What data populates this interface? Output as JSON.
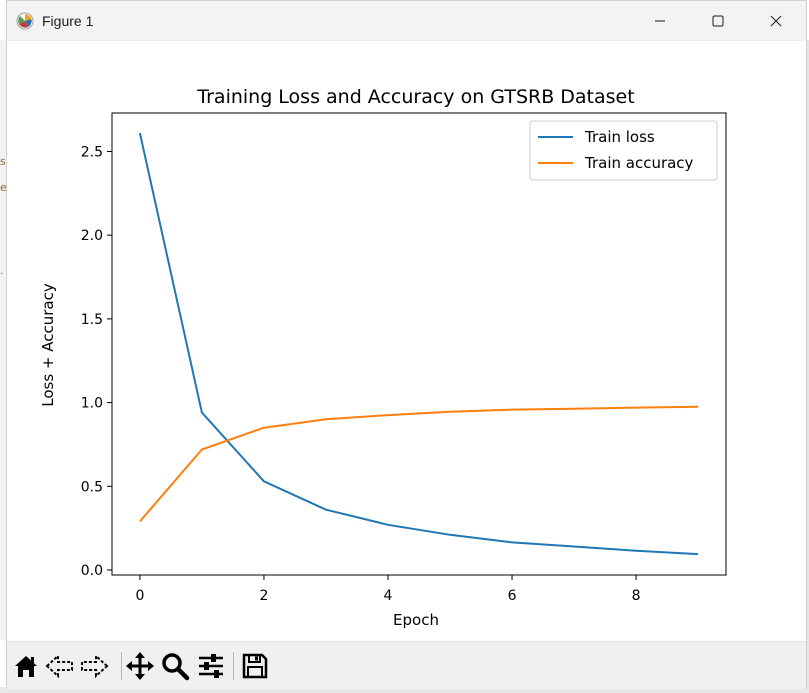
{
  "window": {
    "title": "Figure 1"
  },
  "toolbar": {
    "buttons": [
      {
        "name": "home-icon"
      },
      {
        "name": "back-arrow-icon"
      },
      {
        "name": "forward-arrow-icon"
      },
      {
        "name": "pan-icon"
      },
      {
        "name": "zoom-icon"
      },
      {
        "name": "configure-subplots-icon"
      },
      {
        "name": "save-icon"
      }
    ]
  },
  "colors": {
    "loss": "#1f77b4",
    "accuracy": "#ff7f0e"
  },
  "chart_data": {
    "type": "line",
    "title": "Training Loss and Accuracy on GTSRB Dataset",
    "xlabel": "Epoch",
    "ylabel": "Loss + Accuracy",
    "x": [
      0,
      1,
      2,
      3,
      4,
      5,
      6,
      7,
      8,
      9
    ],
    "xlim": [
      -0.45,
      9.45
    ],
    "ylim": [
      -0.03,
      2.73
    ],
    "xticks": [
      0,
      2,
      4,
      6,
      8
    ],
    "xtick_labels": [
      "0",
      "2",
      "4",
      "6",
      "8"
    ],
    "yticks": [
      0.0,
      0.5,
      1.0,
      1.5,
      2.0,
      2.5
    ],
    "ytick_labels": [
      "0.0",
      "0.5",
      "1.0",
      "1.5",
      "2.0",
      "2.5"
    ],
    "grid": false,
    "legend_position": "top-right",
    "series": [
      {
        "name": "Train loss",
        "color": "#1f77b4",
        "values": [
          2.61,
          0.94,
          0.53,
          0.36,
          0.27,
          0.21,
          0.165,
          0.14,
          0.115,
          0.095
        ]
      },
      {
        "name": "Train accuracy",
        "color": "#ff7f0e",
        "values": [
          0.29,
          0.72,
          0.85,
          0.9,
          0.925,
          0.945,
          0.958,
          0.963,
          0.97,
          0.975
        ]
      }
    ]
  }
}
